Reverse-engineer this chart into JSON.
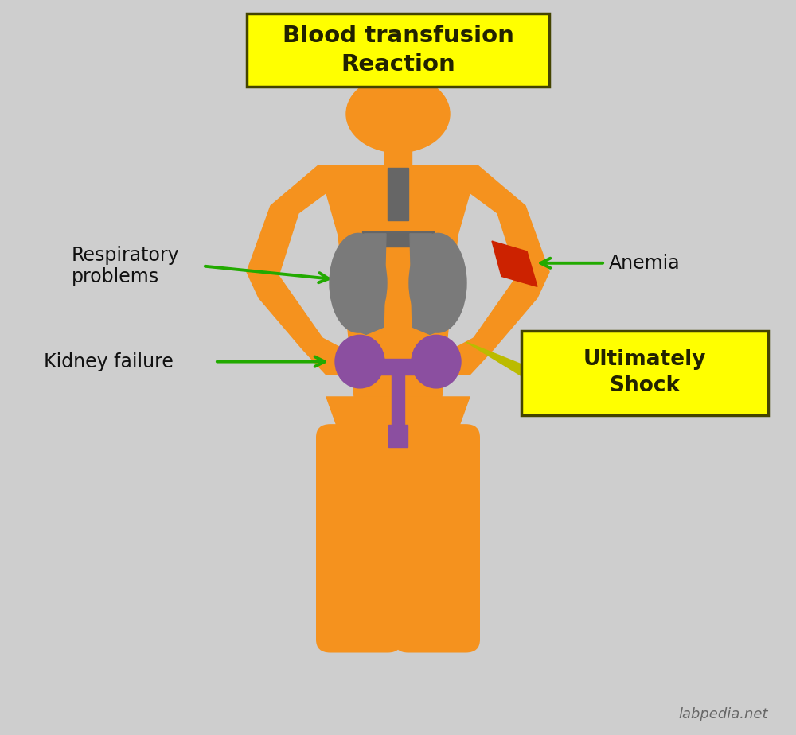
{
  "background_color": "#cecece",
  "title_text": "Blood transfusion\nReaction",
  "title_bg": "#ffff00",
  "orange_color": "#f5921e",
  "gray_color": "#7a7a7a",
  "purple_color": "#8b4fa0",
  "red_color": "#cc2200",
  "green_color": "#22aa00",
  "yellow_color": "#ffff00",
  "dark_gray": "#666666",
  "label_respiratory": "Respiratory\nproblems",
  "label_kidney": "Kidney failure",
  "label_anemia": "Anemia",
  "label_shock": "Ultimately\nShock",
  "watermark": "labpedia.net",
  "text_color": "#222200"
}
